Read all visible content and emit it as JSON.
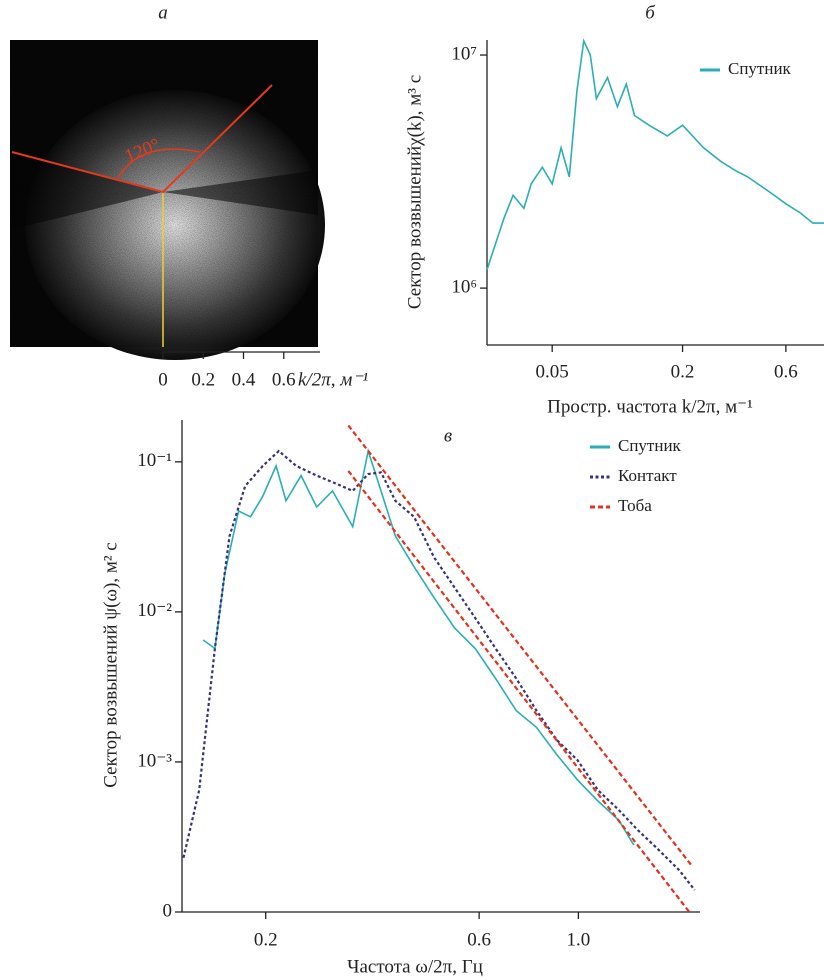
{
  "chart_data": [
    {
      "type": "image",
      "title": "а",
      "annotations": [
        "120°"
      ],
      "xlabel": "k/2π, м⁻¹",
      "xlim": [
        0,
        0.78
      ],
      "xticks": [
        0,
        0.2,
        0.4,
        0.6
      ]
    },
    {
      "type": "line",
      "title": "б",
      "xlabel": "Простр. частота k/2π, м⁻¹",
      "ylabel": "Сектор возвышенийχ(k), м³ с",
      "xscale": "log",
      "yscale": "log",
      "legend": "upper right",
      "xlim": [
        0.025,
        0.9
      ],
      "xticks": [
        0.05,
        0.2,
        0.6
      ],
      "ylim": [
        570000,
        11600000
      ],
      "yticks": [
        {
          "value": 1000000,
          "label": "10⁶"
        },
        {
          "value": 10000000,
          "label": "10⁷"
        }
      ],
      "x": [
        0.025,
        0.03,
        0.033,
        0.037,
        0.04,
        0.045,
        0.05,
        0.055,
        0.06,
        0.065,
        0.07,
        0.075,
        0.08,
        0.09,
        0.1,
        0.11,
        0.12,
        0.14,
        0.17,
        0.2,
        0.25,
        0.3,
        0.35,
        0.4,
        0.5,
        0.6,
        0.7,
        0.8,
        0.9
      ],
      "series": [
        {
          "name": "Спутник",
          "color": "#2aafb5",
          "style": "solid",
          "values": [
            1200000,
            2000000,
            2500000,
            2200000,
            2800000,
            3300000,
            2800000,
            4000000,
            3000000,
            7000000,
            11500000,
            10000000,
            6500000,
            8000000,
            6000000,
            7500000,
            5500000,
            5000000,
            4500000,
            5000000,
            4000000,
            3500000,
            3200000,
            3000000,
            2600000,
            2300000,
            2100000,
            1900000,
            1900000
          ]
        }
      ]
    },
    {
      "type": "line",
      "title": "в",
      "xlabel": "Частота ω/2π, Гц",
      "ylabel": "Сектор возвышений ψ(ω), м² с",
      "xscale": "log",
      "yscale": "log",
      "legend": "upper right",
      "xlim": [
        0.13,
        1.87
      ],
      "xticks": [
        0.2,
        0.6,
        {
          "value": 1,
          "label": "1.0"
        }
      ],
      "ylim": [
        0.0001,
        0.19
      ],
      "yticks": [
        {
          "value": 0.0001,
          "label": "0"
        },
        {
          "value": 0.001,
          "label": "10⁻³"
        },
        {
          "value": 0.01,
          "label": "10⁻²"
        },
        {
          "value": 0.1,
          "label": "10⁻¹"
        }
      ],
      "series": [
        {
          "name": "Спутник",
          "color": "#2aafb5",
          "style": "solid",
          "x": [
            0.145,
            0.154,
            0.162,
            0.174,
            0.185,
            0.197,
            0.211,
            0.222,
            0.24,
            0.26,
            0.282,
            0.313,
            0.339,
            0.362,
            0.39,
            0.429,
            0.476,
            0.529,
            0.588,
            0.653,
            0.726,
            0.806,
            0.895,
            0.995,
            1.105,
            1.23,
            1.33
          ],
          "values": [
            0.0065,
            0.0057,
            0.018,
            0.047,
            0.043,
            0.059,
            0.094,
            0.055,
            0.081,
            0.05,
            0.064,
            0.037,
            0.118,
            0.064,
            0.032,
            0.02,
            0.0124,
            0.0078,
            0.0057,
            0.0036,
            0.0022,
            0.0017,
            0.00112,
            0.00076,
            0.00055,
            0.00041,
            0.00028
          ]
        },
        {
          "name": "Контакт",
          "color": "#35337f",
          "style": "dotted",
          "x": [
            0.131,
            0.142,
            0.154,
            0.166,
            0.18,
            0.197,
            0.214,
            0.234,
            0.26,
            0.289,
            0.313,
            0.339,
            0.362,
            0.39,
            0.429,
            0.476,
            0.529,
            0.588,
            0.653,
            0.726,
            0.806,
            0.895,
            0.995,
            1.105,
            1.23,
            1.36,
            1.51,
            1.68,
            1.82
          ],
          "values": [
            0.00023,
            0.00065,
            0.0057,
            0.032,
            0.069,
            0.094,
            0.118,
            0.094,
            0.081,
            0.071,
            0.064,
            0.083,
            0.085,
            0.055,
            0.043,
            0.023,
            0.0145,
            0.0091,
            0.0057,
            0.0036,
            0.0022,
            0.0014,
            0.00103,
            0.00065,
            0.00048,
            0.00035,
            0.00026,
            0.00019,
            0.00014
          ]
        },
        {
          "name": "Тоба",
          "color": "#e2321f",
          "style": "dashed",
          "x": [
            0.306,
            1.8,
            null,
            0.306,
            1.77
          ],
          "values": [
            0.175,
            0.0002,
            null,
            0.087,
            0.0001
          ]
        }
      ]
    }
  ]
}
